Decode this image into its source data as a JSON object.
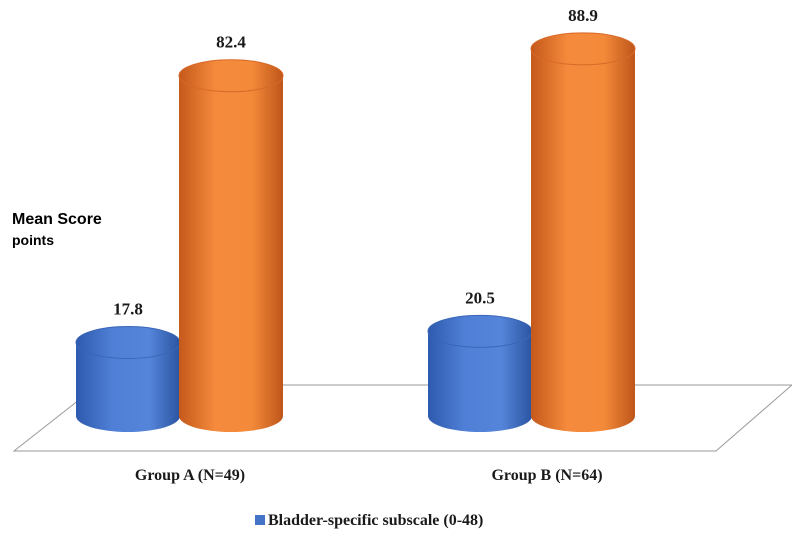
{
  "chart_data": {
    "type": "bar",
    "style": "3d-cylinder",
    "ylabel": [
      "Mean Score",
      "points"
    ],
    "categories": [
      "Group A (N=49)",
      "Group B (N=64)"
    ],
    "series": [
      {
        "name": "Bladder-specific subscale (0-48)",
        "values": [
          17.8,
          20.5
        ],
        "color": "#4472C4"
      },
      {
        "name": "",
        "values": [
          82.4,
          88.9
        ],
        "color": "#ED7D31"
      }
    ],
    "legend": {
      "position": "bottom",
      "entries": [
        "Bladder-specific subscale (0-48)"
      ]
    },
    "grid": false,
    "ylim": [
      0,
      100
    ]
  }
}
